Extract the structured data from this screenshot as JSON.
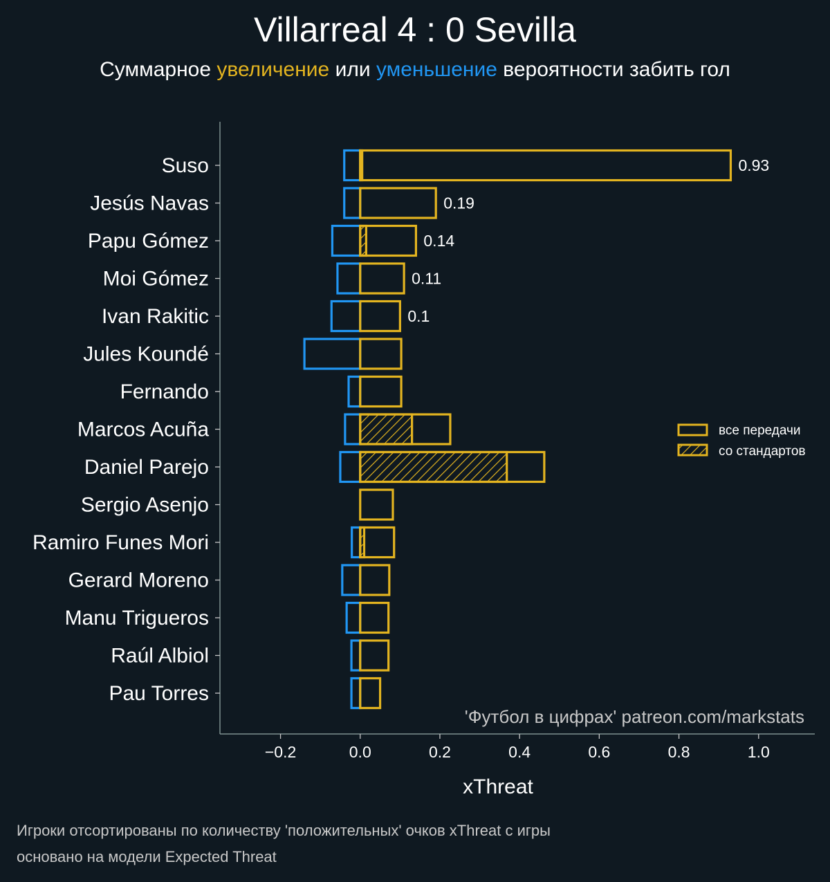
{
  "header": {
    "title": "Villarreal 4 : 0 Sevilla",
    "subtitle_parts": {
      "prefix": "Суммарное ",
      "increase": "увеличение",
      "middle": " или ",
      "decrease": "уменьшение",
      "suffix": " вероятности забить гол"
    }
  },
  "colors": {
    "background": "#0f1921",
    "increase": "#e3b420",
    "decrease": "#2196f3",
    "axis": "#7f9090",
    "text": "#ffffff",
    "muted_text": "#c8c8c8"
  },
  "chart_data": {
    "type": "bar",
    "orientation": "horizontal",
    "title": "Villarreal 4 : 0 Sevilla",
    "subtitle": "Суммарное увеличение или уменьшение вероятности забить гол",
    "xlabel": "xThreat",
    "ylabel": "",
    "xlim": [
      -0.352,
      1.141
    ],
    "xticks": [
      -0.2,
      0.0,
      0.2,
      0.4,
      0.6,
      0.8,
      1.0
    ],
    "xtick_labels": [
      "−0.2",
      "0.0",
      "0.2",
      "0.4",
      "0.6",
      "0.8",
      "1.0"
    ],
    "grid": false,
    "legend": {
      "position": "right",
      "entries": [
        {
          "label": "все передачи",
          "style": "outline"
        },
        {
          "label": "со стандартов",
          "style": "hatched"
        }
      ]
    },
    "watermark": "'Футбол в цифрах' patreon.com/markstats",
    "categories": [
      "Suso",
      "Jesús Navas",
      "Papu Gómez",
      "Moi Gómez",
      "Ivan Rakitic",
      "Jules Koundé",
      "Fernando",
      "Marcos Acuña",
      "Daniel Parejo",
      "Sergio Asenjo",
      "Ramiro Funes Mori",
      "Gerard Moreno",
      "Manu Trigueros",
      "Raúl Albiol",
      "Pau Torres"
    ],
    "series": [
      {
        "name": "уменьшение (negative xThreat)",
        "color": "#2196f3",
        "values": [
          -0.04,
          -0.04,
          -0.07,
          -0.057,
          -0.072,
          -0.14,
          -0.029,
          -0.038,
          -0.05,
          0.0,
          -0.021,
          -0.045,
          -0.034,
          -0.022,
          -0.022
        ]
      },
      {
        "name": "все передачи (positive xThreat)",
        "color": "#e3b420",
        "values": [
          0.93,
          0.19,
          0.14,
          0.11,
          0.1,
          0.103,
          0.103,
          0.226,
          0.462,
          0.082,
          0.085,
          0.073,
          0.071,
          0.071,
          0.05
        ]
      },
      {
        "name": "со стандартов (set pieces)",
        "color": "#e3b420",
        "hatched": true,
        "values": [
          0.005,
          0.0,
          0.015,
          0.0,
          0.0,
          0.0,
          0.0,
          0.13,
          0.368,
          0.0,
          0.01,
          0.0,
          0.0,
          0.0,
          0.0
        ]
      }
    ],
    "data_labels": [
      "0.93",
      "0.19",
      "0.14",
      "0.11",
      "0.1",
      null,
      null,
      null,
      null,
      null,
      null,
      null,
      null,
      null,
      null
    ]
  },
  "footnotes": [
    "Игроки отсортированы по количеству 'положительных' очков xThreat с игры",
    "основано на модели Expected Threat"
  ]
}
